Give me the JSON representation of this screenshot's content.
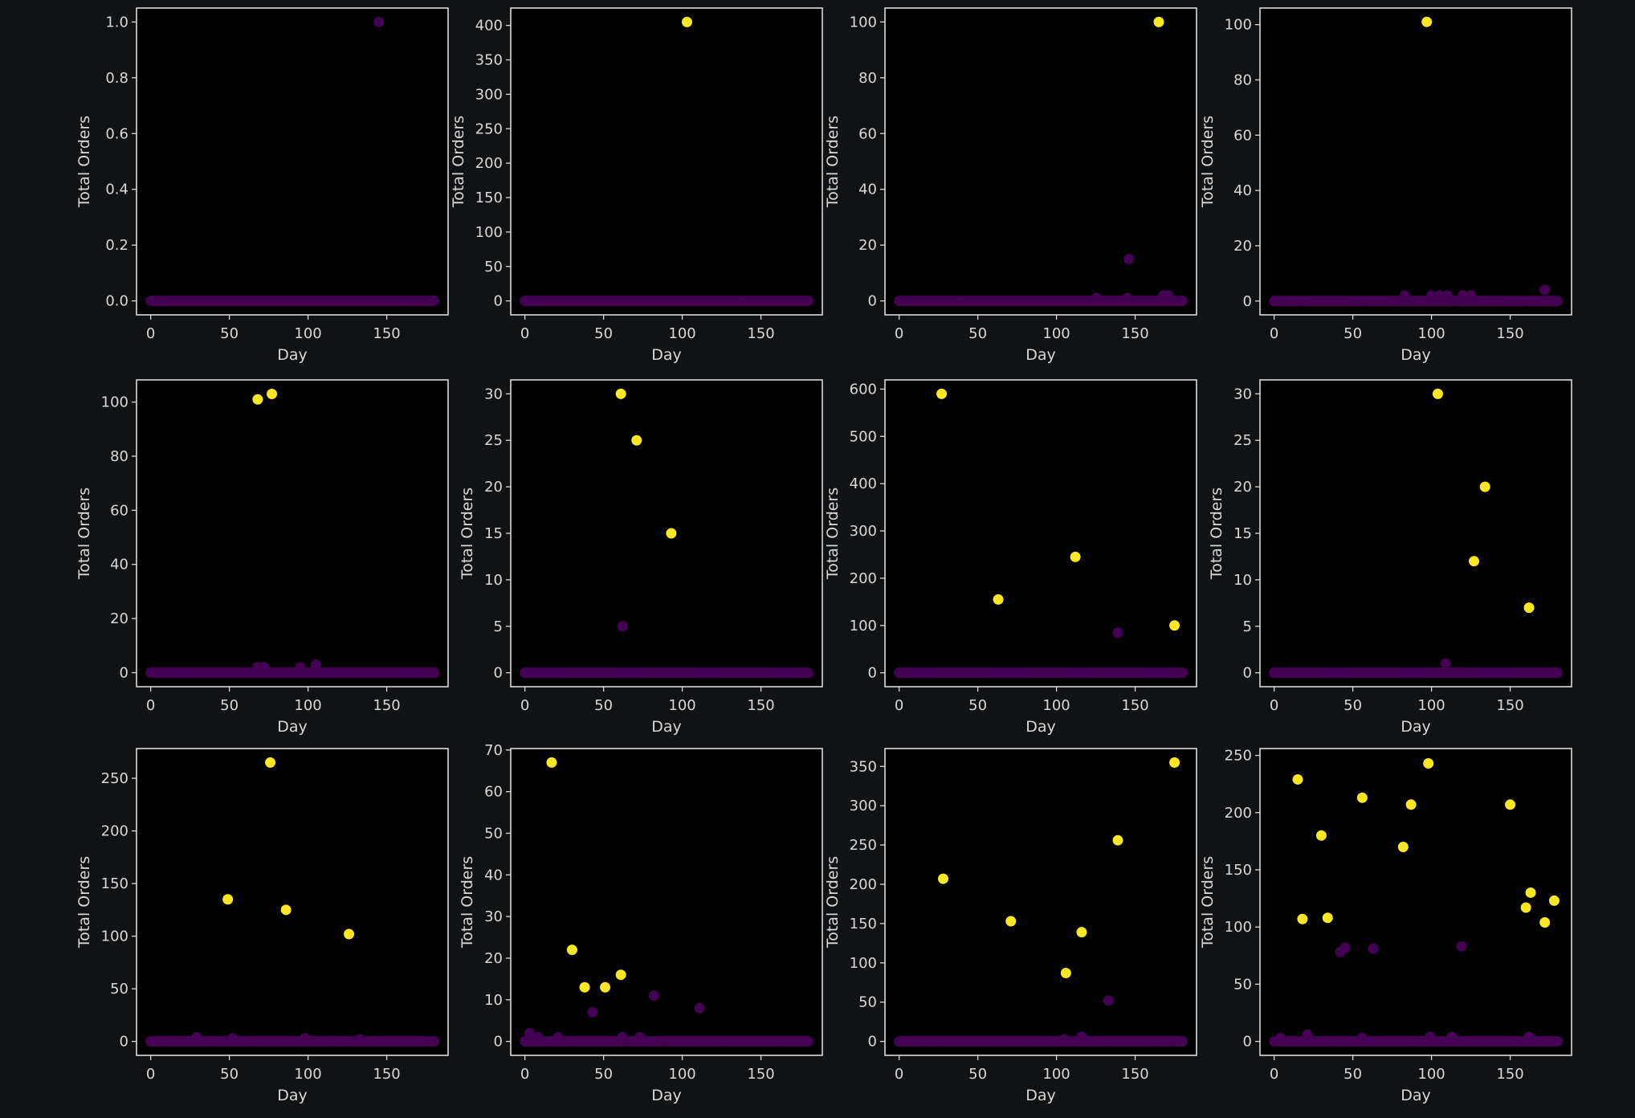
{
  "colors": {
    "background": "#111214",
    "axes_bg": "#000000",
    "frame": "#d9d9d9",
    "low": "#440154",
    "high": "#fde725",
    "text": "#d8d8d8"
  },
  "chart_data": [
    {
      "type": "scatter",
      "xlabel": "Day",
      "ylabel": "Total Orders",
      "xlim": [
        -9,
        189
      ],
      "xticks": [
        0,
        50,
        100,
        150
      ],
      "yticks": [
        "0.0",
        "0.2",
        "0.4",
        "0.6",
        "0.8",
        "1.0"
      ],
      "ytick_values": [
        0,
        0.2,
        0.4,
        0.6,
        0.8,
        1.0
      ],
      "ylim": [
        -0.05,
        1.05
      ],
      "baseline": {
        "x_range": [
          0,
          180
        ],
        "value": 0
      },
      "points": [
        {
          "x": 145,
          "y": 1,
          "c": "low"
        }
      ]
    },
    {
      "type": "scatter",
      "xlabel": "Day",
      "ylabel": "Total Orders",
      "xlim": [
        -9,
        189
      ],
      "xticks": [
        0,
        50,
        100,
        150
      ],
      "yticks": [
        "0",
        "50",
        "100",
        "150",
        "200",
        "250",
        "300",
        "350",
        "400"
      ],
      "ytick_values": [
        0,
        50,
        100,
        150,
        200,
        250,
        300,
        350,
        400
      ],
      "ylim": [
        -20.25,
        425.25
      ],
      "baseline": {
        "x_range": [
          0,
          180
        ],
        "value": 0
      },
      "points": [
        {
          "x": 103,
          "y": 405,
          "c": "high"
        }
      ]
    },
    {
      "type": "scatter",
      "xlabel": "Day",
      "ylabel": "Total Orders",
      "xlim": [
        -9,
        189
      ],
      "xticks": [
        0,
        50,
        100,
        150
      ],
      "yticks": [
        "0",
        "20",
        "40",
        "60",
        "80",
        "100"
      ],
      "ytick_values": [
        0,
        20,
        40,
        60,
        80,
        100
      ],
      "ylim": [
        -5,
        105
      ],
      "baseline": {
        "x_range": [
          0,
          180
        ],
        "value": 0
      },
      "points": [
        {
          "x": 125,
          "y": 1,
          "c": "low"
        },
        {
          "x": 146,
          "y": 15,
          "c": "low"
        },
        {
          "x": 145,
          "y": 1,
          "c": "low"
        },
        {
          "x": 168,
          "y": 2,
          "c": "low"
        },
        {
          "x": 171,
          "y": 2,
          "c": "low"
        },
        {
          "x": 165,
          "y": 100,
          "c": "high"
        }
      ]
    },
    {
      "type": "scatter",
      "xlabel": "Day",
      "ylabel": "Total Orders",
      "xlim": [
        -9,
        189
      ],
      "xticks": [
        0,
        50,
        100,
        150
      ],
      "yticks": [
        "0",
        "20",
        "40",
        "60",
        "80",
        "100"
      ],
      "ytick_values": [
        0,
        20,
        40,
        60,
        80,
        100
      ],
      "ylim": [
        -5,
        106
      ],
      "baseline": {
        "x_range": [
          0,
          180
        ],
        "value": 0
      },
      "points": [
        {
          "x": 83,
          "y": 2,
          "c": "low"
        },
        {
          "x": 100,
          "y": 2,
          "c": "low"
        },
        {
          "x": 105,
          "y": 2,
          "c": "low"
        },
        {
          "x": 110,
          "y": 2,
          "c": "low"
        },
        {
          "x": 120,
          "y": 2,
          "c": "low"
        },
        {
          "x": 125,
          "y": 2,
          "c": "low"
        },
        {
          "x": 172,
          "y": 4,
          "c": "low"
        },
        {
          "x": 97,
          "y": 101,
          "c": "high"
        }
      ]
    },
    {
      "type": "scatter",
      "xlabel": "Day",
      "ylabel": "Total Orders",
      "xlim": [
        -9,
        189
      ],
      "xticks": [
        0,
        50,
        100,
        150
      ],
      "yticks": [
        "0",
        "20",
        "40",
        "60",
        "80",
        "100"
      ],
      "ytick_values": [
        0,
        20,
        40,
        60,
        80,
        100
      ],
      "ylim": [
        -5.2,
        108.2
      ],
      "baseline": {
        "x_range": [
          0,
          180
        ],
        "value": 0
      },
      "points": [
        {
          "x": 68,
          "y": 2,
          "c": "low"
        },
        {
          "x": 72,
          "y": 2,
          "c": "low"
        },
        {
          "x": 95,
          "y": 2,
          "c": "low"
        },
        {
          "x": 105,
          "y": 3,
          "c": "low"
        },
        {
          "x": 68,
          "y": 101,
          "c": "high"
        },
        {
          "x": 77,
          "y": 103,
          "c": "high"
        }
      ]
    },
    {
      "type": "scatter",
      "xlabel": "Day",
      "ylabel": "Total Orders",
      "xlim": [
        -9,
        189
      ],
      "xticks": [
        0,
        50,
        100,
        150
      ],
      "yticks": [
        "0",
        "5",
        "10",
        "15",
        "20",
        "25",
        "30"
      ],
      "ytick_values": [
        0,
        5,
        10,
        15,
        20,
        25,
        30
      ],
      "ylim": [
        -1.5,
        31.5
      ],
      "baseline": {
        "x_range": [
          0,
          180
        ],
        "value": 0
      },
      "points": [
        {
          "x": 62,
          "y": 5,
          "c": "low"
        },
        {
          "x": 61,
          "y": 30,
          "c": "high"
        },
        {
          "x": 71,
          "y": 25,
          "c": "high"
        },
        {
          "x": 93,
          "y": 15,
          "c": "high"
        }
      ]
    },
    {
      "type": "scatter",
      "xlabel": "Day",
      "ylabel": "Total Orders",
      "xlim": [
        -9,
        189
      ],
      "xticks": [
        0,
        50,
        100,
        150
      ],
      "yticks": [
        "0",
        "100",
        "200",
        "300",
        "400",
        "500",
        "600"
      ],
      "ytick_values": [
        0,
        100,
        200,
        300,
        400,
        500,
        600
      ],
      "ylim": [
        -29.5,
        619.5
      ],
      "baseline": {
        "x_range": [
          0,
          180
        ],
        "value": 0
      },
      "points": [
        {
          "x": 139,
          "y": 85,
          "c": "low"
        },
        {
          "x": 27,
          "y": 590,
          "c": "high"
        },
        {
          "x": 63,
          "y": 155,
          "c": "high"
        },
        {
          "x": 112,
          "y": 245,
          "c": "high"
        },
        {
          "x": 175,
          "y": 100,
          "c": "high"
        }
      ]
    },
    {
      "type": "scatter",
      "xlabel": "Day",
      "ylabel": "Total Orders",
      "xlim": [
        -9,
        189
      ],
      "xticks": [
        0,
        50,
        100,
        150
      ],
      "yticks": [
        "0",
        "5",
        "10",
        "15",
        "20",
        "25",
        "30"
      ],
      "ytick_values": [
        0,
        5,
        10,
        15,
        20,
        25,
        30
      ],
      "ylim": [
        -1.5,
        31.5
      ],
      "baseline": {
        "x_range": [
          0,
          180
        ],
        "value": 0
      },
      "points": [
        {
          "x": 109,
          "y": 1,
          "c": "low"
        },
        {
          "x": 104,
          "y": 30,
          "c": "high"
        },
        {
          "x": 134,
          "y": 20,
          "c": "high"
        },
        {
          "x": 127,
          "y": 12,
          "c": "high"
        },
        {
          "x": 162,
          "y": 7,
          "c": "high"
        }
      ]
    },
    {
      "type": "scatter",
      "xlabel": "Day",
      "ylabel": "Total Orders",
      "xlim": [
        -9,
        189
      ],
      "xticks": [
        0,
        50,
        100,
        150
      ],
      "yticks": [
        "0",
        "50",
        "100",
        "150",
        "200",
        "250"
      ],
      "ytick_values": [
        0,
        50,
        100,
        150,
        200,
        250
      ],
      "ylim": [
        -13.25,
        278.25
      ],
      "baseline": {
        "x_range": [
          0,
          180
        ],
        "value": 0
      },
      "points": [
        {
          "x": 29,
          "y": 4,
          "c": "low"
        },
        {
          "x": 52,
          "y": 3,
          "c": "low"
        },
        {
          "x": 98,
          "y": 3,
          "c": "low"
        },
        {
          "x": 133,
          "y": 2,
          "c": "low"
        },
        {
          "x": 76,
          "y": 265,
          "c": "high"
        },
        {
          "x": 49,
          "y": 135,
          "c": "high"
        },
        {
          "x": 86,
          "y": 125,
          "c": "high"
        },
        {
          "x": 126,
          "y": 102,
          "c": "high"
        }
      ]
    },
    {
      "type": "scatter",
      "xlabel": "Day",
      "ylabel": "Total Orders",
      "xlim": [
        -9,
        189
      ],
      "xticks": [
        0,
        50,
        100,
        150
      ],
      "yticks": [
        "0",
        "10",
        "20",
        "30",
        "40",
        "50",
        "60",
        "70"
      ],
      "ytick_values": [
        0,
        10,
        20,
        30,
        40,
        50,
        60,
        70
      ],
      "ylim": [
        -3.35,
        70.35
      ],
      "baseline": {
        "x_range": [
          0,
          180
        ],
        "value": 0
      },
      "points": [
        {
          "x": 3,
          "y": 2,
          "c": "low"
        },
        {
          "x": 8,
          "y": 1,
          "c": "low"
        },
        {
          "x": 21,
          "y": 1,
          "c": "low"
        },
        {
          "x": 62,
          "y": 1,
          "c": "low"
        },
        {
          "x": 73,
          "y": 1,
          "c": "low"
        },
        {
          "x": 43,
          "y": 7,
          "c": "low"
        },
        {
          "x": 82,
          "y": 11,
          "c": "low"
        },
        {
          "x": 111,
          "y": 8,
          "c": "low"
        },
        {
          "x": 17,
          "y": 67,
          "c": "high"
        },
        {
          "x": 30,
          "y": 22,
          "c": "high"
        },
        {
          "x": 38,
          "y": 13,
          "c": "high"
        },
        {
          "x": 51,
          "y": 13,
          "c": "high"
        },
        {
          "x": 61,
          "y": 16,
          "c": "high"
        }
      ]
    },
    {
      "type": "scatter",
      "xlabel": "Day",
      "ylabel": "Total Orders",
      "xlim": [
        -9,
        189
      ],
      "xticks": [
        0,
        50,
        100,
        150
      ],
      "yticks": [
        "0",
        "50",
        "100",
        "150",
        "200",
        "250",
        "300",
        "350"
      ],
      "ytick_values": [
        0,
        50,
        100,
        150,
        200,
        250,
        300,
        350
      ],
      "ylim": [
        -17.75,
        372.75
      ],
      "baseline": {
        "x_range": [
          0,
          180
        ],
        "value": 0
      },
      "points": [
        {
          "x": 105,
          "y": 3,
          "c": "low"
        },
        {
          "x": 116,
          "y": 6,
          "c": "low"
        },
        {
          "x": 133,
          "y": 52,
          "c": "low"
        },
        {
          "x": 28,
          "y": 207,
          "c": "high"
        },
        {
          "x": 71,
          "y": 153,
          "c": "high"
        },
        {
          "x": 106,
          "y": 87,
          "c": "high"
        },
        {
          "x": 116,
          "y": 139,
          "c": "high"
        },
        {
          "x": 139,
          "y": 256,
          "c": "high"
        },
        {
          "x": 175,
          "y": 355,
          "c": "high"
        }
      ]
    },
    {
      "type": "scatter",
      "xlabel": "Day",
      "ylabel": "Total Orders",
      "xlim": [
        -9,
        189
      ],
      "xticks": [
        0,
        50,
        100,
        150
      ],
      "yticks": [
        "0",
        "50",
        "100",
        "150",
        "200",
        "250"
      ],
      "ytick_values": [
        0,
        50,
        100,
        150,
        200,
        250
      ],
      "ylim": [
        -12.2,
        256
      ],
      "baseline": {
        "x_range": [
          0,
          180
        ],
        "value": 0
      },
      "points": [
        {
          "x": 4,
          "y": 3,
          "c": "low"
        },
        {
          "x": 21,
          "y": 6,
          "c": "low"
        },
        {
          "x": 56,
          "y": 3,
          "c": "low"
        },
        {
          "x": 99,
          "y": 4,
          "c": "low"
        },
        {
          "x": 113,
          "y": 4,
          "c": "low"
        },
        {
          "x": 162,
          "y": 4,
          "c": "low"
        },
        {
          "x": 42,
          "y": 78,
          "c": "low"
        },
        {
          "x": 45,
          "y": 82,
          "c": "low"
        },
        {
          "x": 63,
          "y": 81,
          "c": "low"
        },
        {
          "x": 119,
          "y": 83,
          "c": "low"
        },
        {
          "x": 15,
          "y": 229,
          "c": "high"
        },
        {
          "x": 18,
          "y": 107,
          "c": "high"
        },
        {
          "x": 30,
          "y": 180,
          "c": "high"
        },
        {
          "x": 34,
          "y": 108,
          "c": "high"
        },
        {
          "x": 56,
          "y": 213,
          "c": "high"
        },
        {
          "x": 82,
          "y": 170,
          "c": "high"
        },
        {
          "x": 87,
          "y": 207,
          "c": "high"
        },
        {
          "x": 98,
          "y": 243,
          "c": "high"
        },
        {
          "x": 150,
          "y": 207,
          "c": "high"
        },
        {
          "x": 160,
          "y": 117,
          "c": "high"
        },
        {
          "x": 163,
          "y": 130,
          "c": "high"
        },
        {
          "x": 172,
          "y": 104,
          "c": "high"
        },
        {
          "x": 178,
          "y": 123,
          "c": "high"
        }
      ]
    }
  ]
}
